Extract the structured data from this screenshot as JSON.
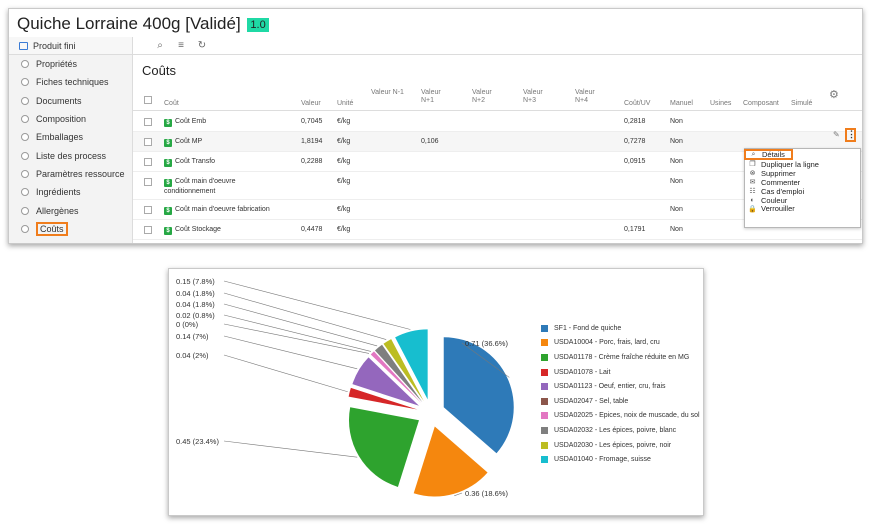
{
  "header": {
    "title": "Quiche Lorraine 400g [Validé]",
    "version": "1.0"
  },
  "sidebar": {
    "head": "Produit fini",
    "items": [
      {
        "label": "Propriétés"
      },
      {
        "label": "Fiches techniques"
      },
      {
        "label": "Documents"
      },
      {
        "label": "Composition"
      },
      {
        "label": "Emballages"
      },
      {
        "label": "Liste des process"
      },
      {
        "label": "Paramètres ressource"
      },
      {
        "label": "Ingrédients"
      },
      {
        "label": "Allergènes"
      },
      {
        "label": "Coûts"
      }
    ]
  },
  "toolbar": {
    "icons": [
      "search-icon",
      "list-icon",
      "refresh-icon"
    ]
  },
  "main": {
    "heading": "Coûts",
    "columns": [
      "Coût",
      "Valeur",
      "Unité",
      "Valeur N-1",
      "Valeur N+1",
      "Valeur N+2",
      "Valeur N+3",
      "Valeur N+4",
      "Coût/UV",
      "Manuel",
      "Usines",
      "Composant",
      "Simulé"
    ],
    "rows": [
      {
        "cout": "Coût Emb",
        "valeur": "0,7045",
        "unite": "€/kg",
        "n1": "",
        "np1": "",
        "cuv": "0,2818",
        "manuel": "Non"
      },
      {
        "cout": "Coût MP",
        "valeur": "1,8194",
        "unite": "€/kg",
        "n1": "",
        "np1": "0,106",
        "cuv": "0,7278",
        "manuel": "Non"
      },
      {
        "cout": "Coût Transfo",
        "valeur": "0,2288",
        "unite": "€/kg",
        "n1": "",
        "np1": "",
        "cuv": "0,0915",
        "manuel": "Non"
      },
      {
        "cout": "Coût main d'oeuvre conditionnement",
        "valeur": "",
        "unite": "€/kg",
        "n1": "",
        "np1": "",
        "cuv": "",
        "manuel": "Non"
      },
      {
        "cout": "Coût main d'oeuvre fabrication",
        "valeur": "",
        "unite": "€/kg",
        "n1": "",
        "np1": "",
        "cuv": "",
        "manuel": "Non"
      },
      {
        "cout": "Coût Stockage",
        "valeur": "0,4478",
        "unite": "€/kg",
        "n1": "",
        "np1": "",
        "cuv": "0,1791",
        "manuel": "Non"
      }
    ]
  },
  "badge": "$",
  "kebab": "⋮",
  "context_menu": [
    {
      "label": "Détails",
      "icon": "search-icon"
    },
    {
      "label": "Dupliquer la ligne",
      "icon": "duplicate-icon"
    },
    {
      "label": "Supprimer",
      "icon": "delete-icon"
    },
    {
      "label": "Commenter",
      "icon": "comment-icon"
    },
    {
      "label": "Cas d'emploi",
      "icon": "usage-icon"
    },
    {
      "label": "Couleur",
      "icon": "color-icon"
    },
    {
      "label": "Verrouiller",
      "icon": "lock-icon"
    }
  ],
  "chart_data": {
    "type": "pie",
    "legend_position": "right",
    "slices": [
      {
        "name": "SF1 - Fond de quiche",
        "value": 0.71,
        "label": "0.71 (36.6%)",
        "color": "#2e7ab8"
      },
      {
        "name": "USDA10004 - Porc, frais, lard, cru",
        "value": 0.36,
        "label": "0.36 (18.6%)",
        "color": "#f5870e"
      },
      {
        "name": "USDA01178 - Crème fraîche réduite en MG",
        "value": 0.45,
        "label": "0.45 (23.4%)",
        "color": "#2ea32e"
      },
      {
        "name": "USDA01078 - Lait",
        "value": 0.04,
        "label": "0.04 (2%)",
        "color": "#d62728"
      },
      {
        "name": "USDA01123 - Oeuf, entier, cru, frais",
        "value": 0.14,
        "label": "0.14 (7%)",
        "color": "#9467bd"
      },
      {
        "name": "USDA02047 - Sel, table",
        "value": 0.0,
        "label": "0 (0%)",
        "color": "#8c564b"
      },
      {
        "name": "USDA02025 - Epices, noix de muscade, du sol",
        "value": 0.02,
        "label": "0.02 (0.8%)",
        "color": "#e377c2"
      },
      {
        "name": "USDA02032 - Les épices, poivre, blanc",
        "value": 0.04,
        "label": "0.04 (1.8%)",
        "color": "#7f7f7f"
      },
      {
        "name": "USDA02030 - Les épices, poivre, noir",
        "value": 0.04,
        "label": "0.04 (1.8%)",
        "color": "#bcbd22"
      },
      {
        "name": "USDA01040 - Fromage, suisse",
        "value": 0.15,
        "label": "0.15 (7.8%)",
        "color": "#17becf"
      }
    ]
  }
}
